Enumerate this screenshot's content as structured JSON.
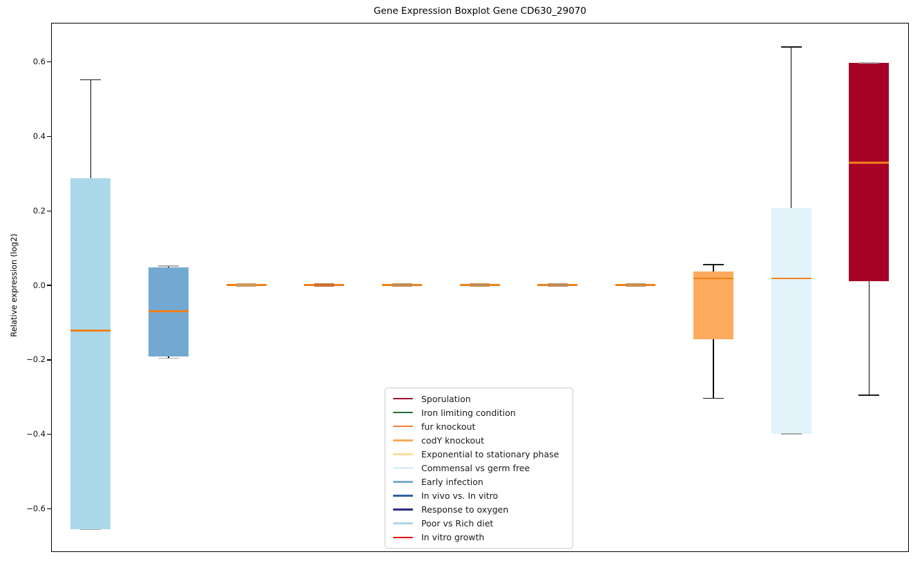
{
  "chart_data": {
    "type": "boxplot",
    "title": "Gene Expression Boxplot Gene CD630_29070",
    "ylabel": "Relative expression (log2)",
    "xlabel": "",
    "ylim": [
      -0.713,
      0.702
    ],
    "yticks": [
      0.6,
      0.4,
      0.2,
      0.0,
      -0.2,
      -0.4,
      -0.6
    ],
    "ytick_labels": [
      "0.6",
      "0.4",
      "0.2",
      "0.0",
      "−0.2",
      "−0.4",
      "−0.6"
    ],
    "grid": false,
    "x_tick_labels_shown": false,
    "legend_position": "lower-center",
    "median_color": "#f08118",
    "boxes": [
      {
        "condition": "Poor vs Rich diet",
        "fill": "#abd8e9",
        "whisker_low": -0.655,
        "q1": -0.655,
        "median": -0.122,
        "q3": 0.286,
        "whisker_high": 0.551,
        "collapsed": false
      },
      {
        "condition": "Early infection",
        "fill": "#73a9d1",
        "whisker_low": -0.196,
        "q1": -0.192,
        "median": -0.07,
        "q3": 0.048,
        "whisker_high": 0.052,
        "collapsed": false
      },
      {
        "condition": null,
        "fill": null,
        "center_color": "#ce9a60",
        "whisker_low": -0.005,
        "q1": -0.003,
        "median": 0.0,
        "q3": 0.003,
        "whisker_high": 0.005,
        "collapsed": true
      },
      {
        "condition": null,
        "fill": null,
        "center_color": "#cb7134",
        "whisker_low": -0.005,
        "q1": -0.003,
        "median": 0.0,
        "q3": 0.003,
        "whisker_high": 0.005,
        "collapsed": true
      },
      {
        "condition": null,
        "fill": null,
        "center_color": "#c38d55",
        "whisker_low": -0.005,
        "q1": -0.003,
        "median": 0.0,
        "q3": 0.003,
        "whisker_high": 0.005,
        "collapsed": true
      },
      {
        "condition": null,
        "fill": null,
        "center_color": "#c38e52",
        "whisker_low": -0.005,
        "q1": -0.003,
        "median": 0.0,
        "q3": 0.003,
        "whisker_high": 0.005,
        "collapsed": true
      },
      {
        "condition": null,
        "fill": null,
        "center_color": "#bd8d5d",
        "whisker_low": -0.005,
        "q1": -0.003,
        "median": 0.0,
        "q3": 0.003,
        "whisker_high": 0.005,
        "collapsed": true
      },
      {
        "condition": null,
        "fill": null,
        "center_color": "#c69052",
        "whisker_low": -0.005,
        "q1": -0.003,
        "median": 0.0,
        "q3": 0.003,
        "whisker_high": 0.005,
        "collapsed": true
      },
      {
        "condition": "codY knockout",
        "fill": "#fbaa5e",
        "whisker_low": -0.303,
        "q1": -0.144,
        "median": 0.018,
        "q3": 0.037,
        "whisker_high": 0.055,
        "collapsed": false
      },
      {
        "condition": "Commensal vs germ free",
        "fill": "#e2f3f9",
        "whisker_low": -0.399,
        "q1": -0.399,
        "median": 0.018,
        "q3": 0.207,
        "whisker_high": 0.639,
        "collapsed": false
      },
      {
        "condition": "Sporulation",
        "fill": "#a50226",
        "whisker_low": -0.295,
        "q1": 0.011,
        "median": 0.329,
        "q3": 0.596,
        "whisker_high": 0.596,
        "collapsed": false
      }
    ],
    "legend": [
      {
        "label": "Sporulation",
        "color": "#9f0e2c"
      },
      {
        "label": "Iron limiting condition",
        "color": "#1e6e2e"
      },
      {
        "label": "fur knockout",
        "color": "#f57a3d"
      },
      {
        "label": "codY knockout",
        "color": "#fbaa58"
      },
      {
        "label": "Exponential to stationary phase",
        "color": "#fbdd9b"
      },
      {
        "label": "Commensal vs germ free",
        "color": "#dceef7"
      },
      {
        "label": "Early infection",
        "color": "#77aacf"
      },
      {
        "label": "In vivo vs. In vitro",
        "color": "#305f9e"
      },
      {
        "label": "Response to oxygen",
        "color": "#2a2a80"
      },
      {
        "label": "Poor vs Rich diet",
        "color": "#aed5e8"
      },
      {
        "label": "In vitro growth",
        "color": "#e8000d"
      }
    ]
  }
}
